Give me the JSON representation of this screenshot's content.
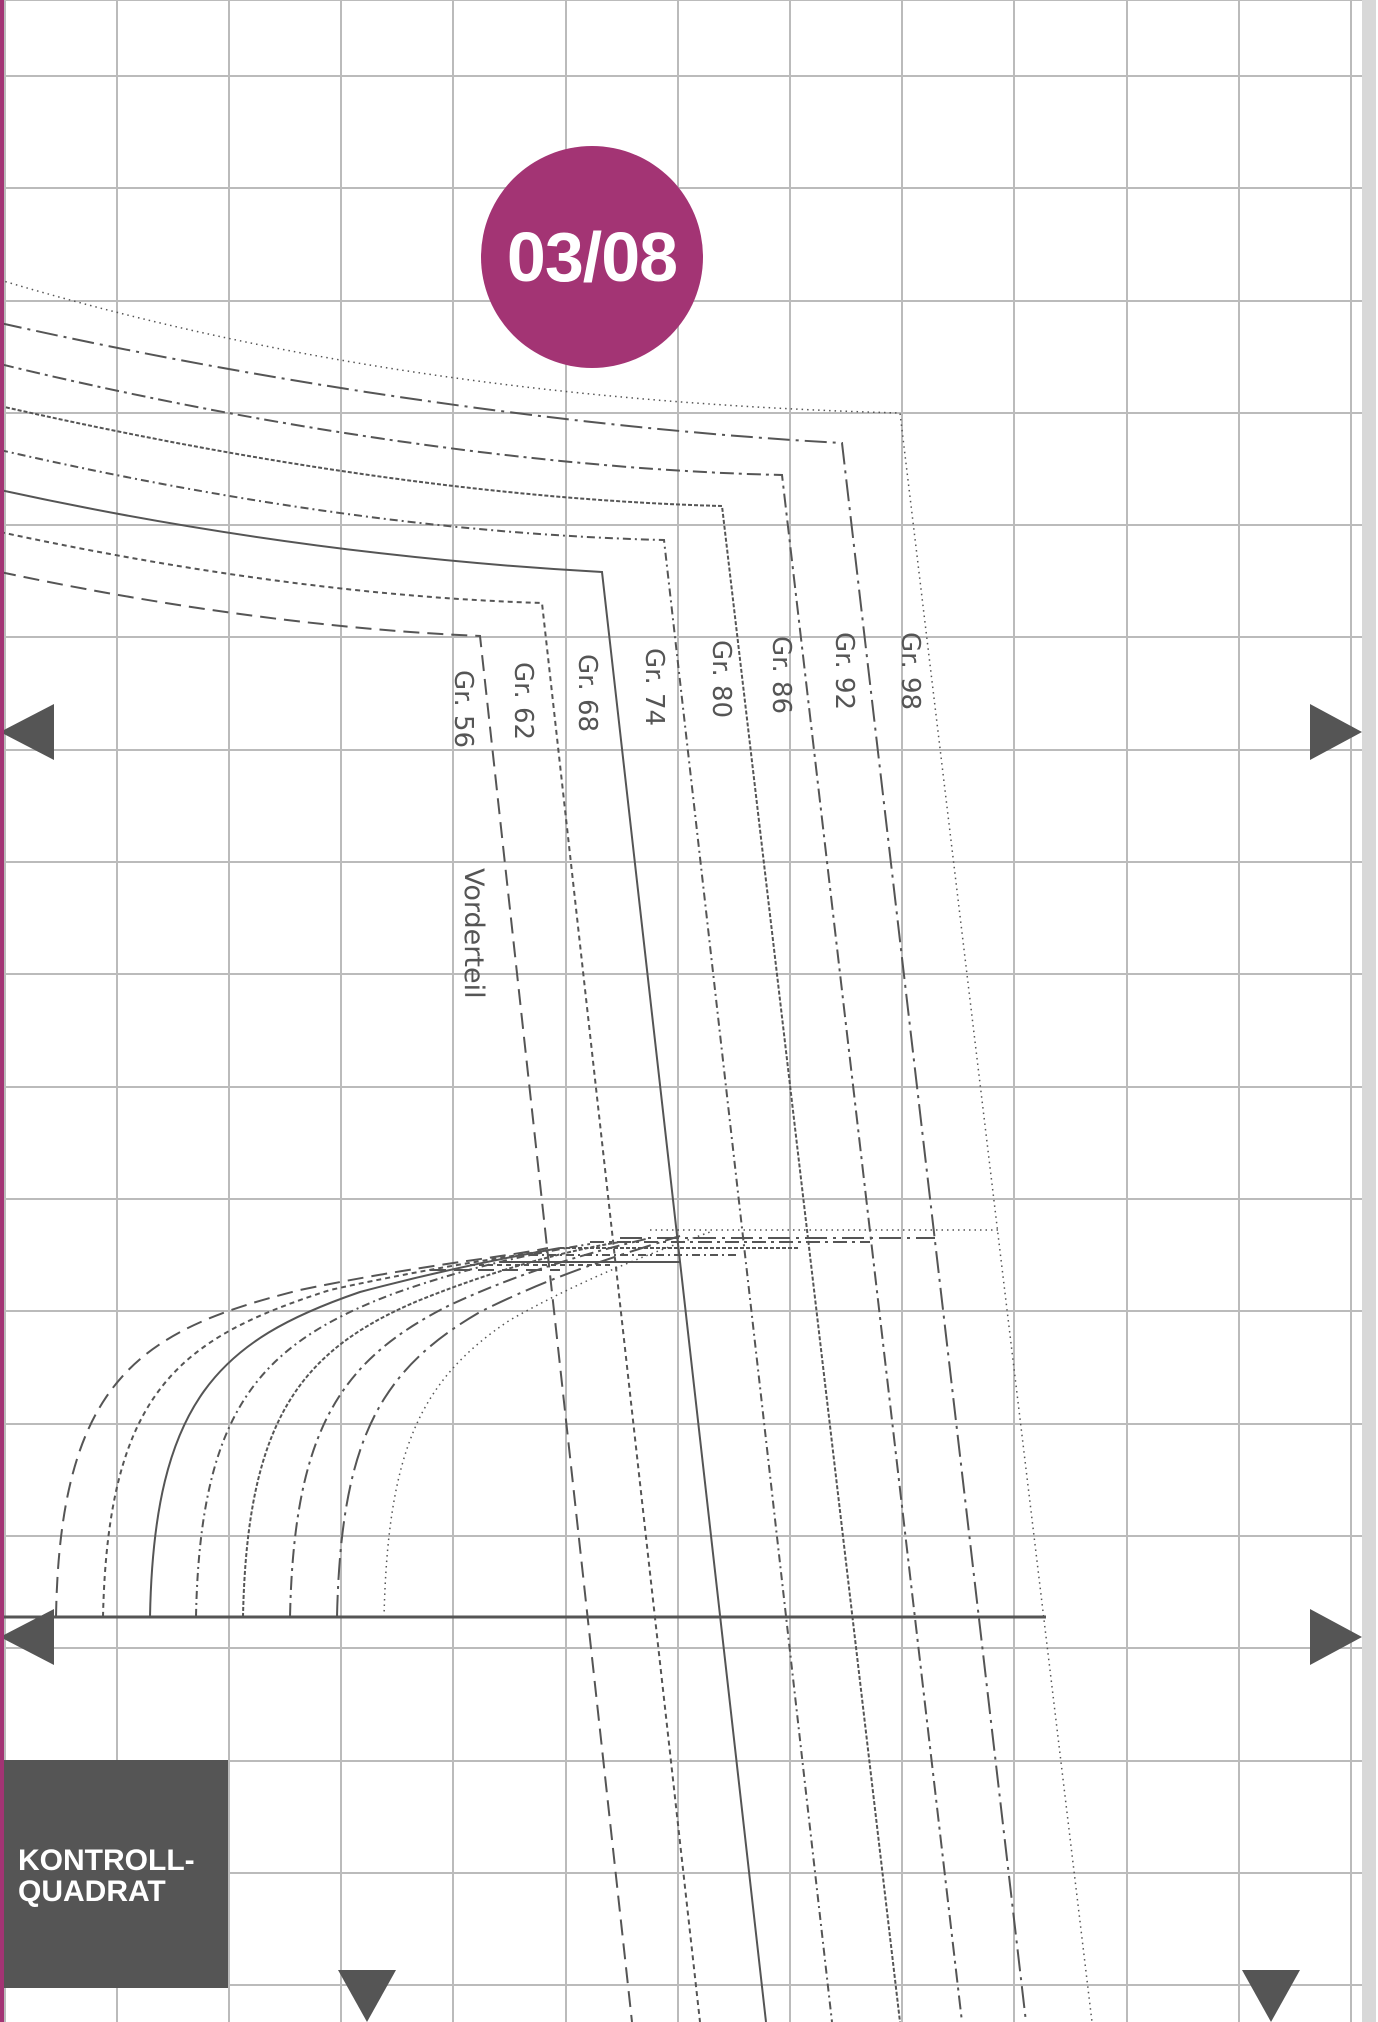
{
  "page": {
    "number": "03/08"
  },
  "control_square": {
    "line1": "KONTROLL-",
    "line2": "QUADRAT"
  },
  "piece": {
    "label": "Vorderteil"
  },
  "sizes": [
    "Gr. 56",
    "Gr. 62",
    "Gr. 68",
    "Gr. 74",
    "Gr. 80",
    "Gr. 86",
    "Gr. 92",
    "Gr. 98"
  ],
  "colors": {
    "accent": "#a33474",
    "grid": "#bbbbbb",
    "pattern_line": "#555555",
    "control_square": "#555555",
    "right_edge": "#d8d8d8"
  },
  "icons": {
    "page_arrow_right": "triangle-right-icon",
    "page_arrow_left": "triangle-left-icon",
    "page_arrow_down": "triangle-down-icon"
  }
}
